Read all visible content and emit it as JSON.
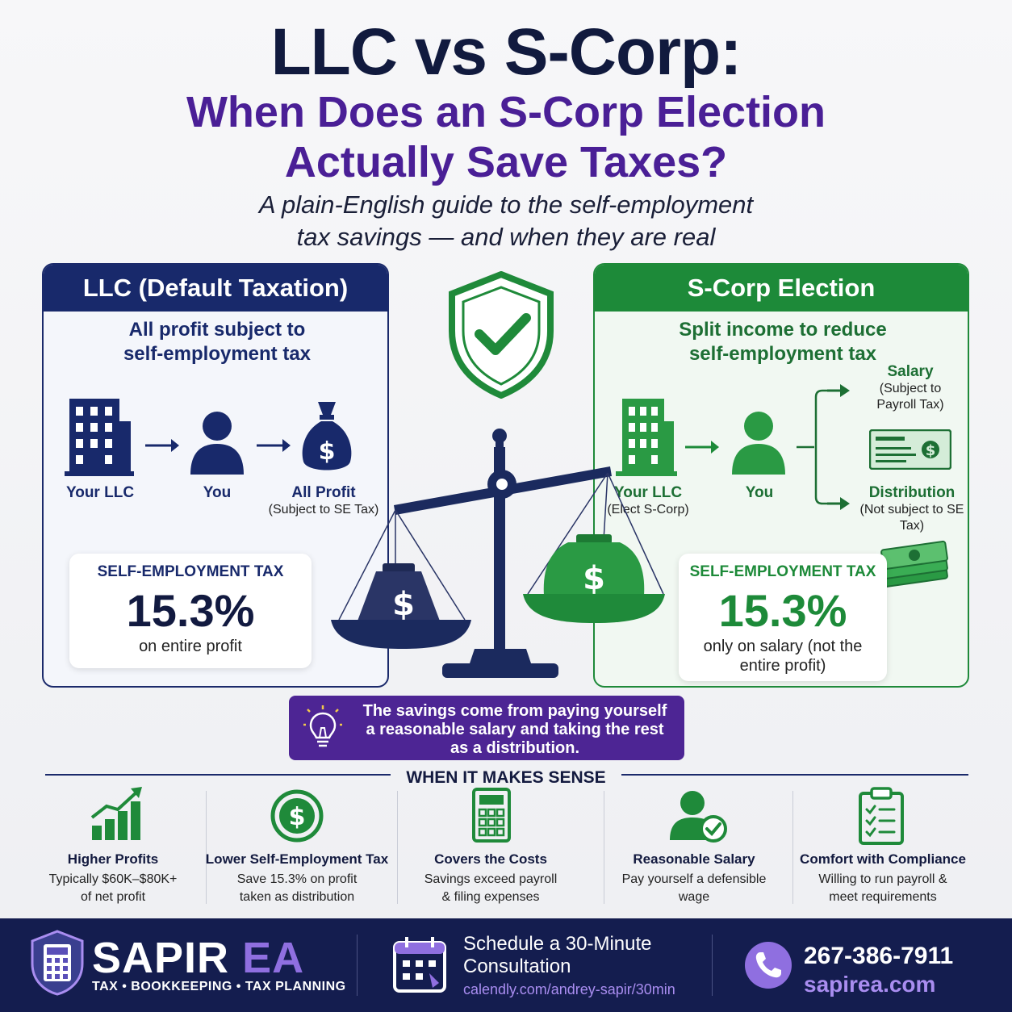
{
  "header": {
    "title": "LLC vs S-Corp:",
    "subtitle_line1": "When Does an S-Corp Election",
    "subtitle_line2": "Actually Save Taxes?",
    "tagline_line1": "A plain-English guide to the self-employment",
    "tagline_line2": "tax savings — and when they are real"
  },
  "llc_panel": {
    "heading": "LLC (Default Taxation)",
    "desc_line1": "All profit subject to",
    "desc_line2": "self-employment tax",
    "flow": {
      "entity_label": "Your LLC",
      "owner_label": "You",
      "profit_label": "All Profit",
      "profit_sub": "(Subject to SE Tax)"
    },
    "stat": {
      "title": "SELF-EMPLOYMENT TAX",
      "value": "15.3%",
      "note": "on entire profit"
    }
  },
  "scorp_panel": {
    "heading": "S-Corp Election",
    "desc_line1": "Split income to reduce",
    "desc_line2": "self-employment tax",
    "flow": {
      "entity_label": "Your LLC",
      "entity_sub": "(Elect S-Corp)",
      "owner_label": "You",
      "salary_label": "Salary",
      "salary_sub": "(Subject to Payroll Tax)",
      "distribution_label": "Distribution",
      "distribution_sub": "(Not subject to SE Tax)"
    },
    "stat": {
      "title": "SELF-EMPLOYMENT TAX",
      "value": "15.3%",
      "note": "only on salary (not the entire profit)"
    }
  },
  "callout": {
    "text_line1": "The savings come from paying yourself",
    "text_line2": "a reasonable salary and taking the rest",
    "text_line3": "as a distribution."
  },
  "when_section": {
    "title": "WHEN IT MAKES SENSE",
    "items": [
      {
        "title": "Higher Profits",
        "desc_line1": "Typically $60K–$80K+",
        "desc_line2": "of net profit",
        "icon": "bar-chart-growth-icon"
      },
      {
        "title": "Lower Self-Employment Tax",
        "desc_line1": "Save 15.3% on profit",
        "desc_line2": "taken as distribution",
        "icon": "dollar-coin-icon"
      },
      {
        "title": "Covers the Costs",
        "desc_line1": "Savings exceed payroll",
        "desc_line2": "& filing expenses",
        "icon": "calculator-icon"
      },
      {
        "title": "Reasonable Salary",
        "desc_line1": "Pay yourself a defensible",
        "desc_line2": "wage",
        "icon": "person-check-icon"
      },
      {
        "title": "Comfort with Compliance",
        "desc_line1": "Willing to run payroll &",
        "desc_line2": "meet requirements",
        "icon": "checklist-icon"
      }
    ]
  },
  "footer": {
    "brand_main": "SAPIR",
    "brand_accent": "EA",
    "brand_tagline": "TAX • BOOKKEEPING • TAX PLANNING",
    "schedule_line1": "Schedule a 30-Minute",
    "schedule_line2": "Consultation",
    "schedule_link": "calendly.com/andrey-sapir/30min",
    "phone": "267-386-7911",
    "website": "sapirea.com"
  },
  "colors": {
    "navy": "#18296b",
    "green": "#1d8a39",
    "purple": "#4d2594",
    "footer_bg": "#141d4f",
    "accent_light_purple": "#a98df0"
  }
}
